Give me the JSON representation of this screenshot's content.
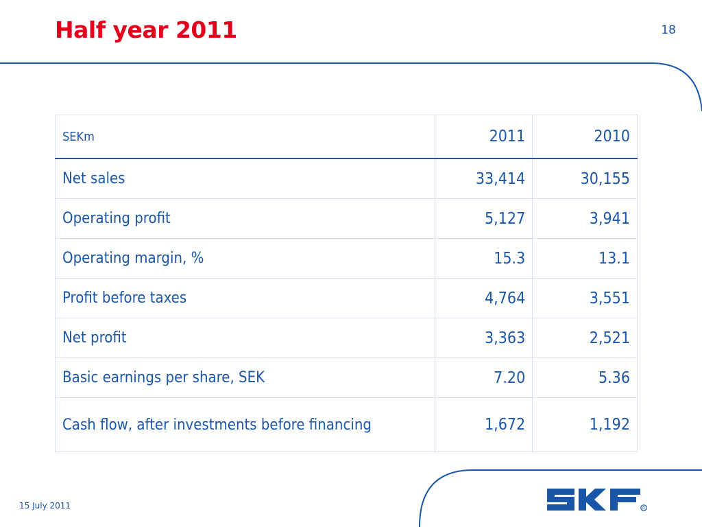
{
  "slide": {
    "title": "Half year 2011",
    "page_number": "18",
    "date": "15 July 2011",
    "logo_text": "SKF"
  },
  "table": {
    "headers": [
      "SEKm",
      "2011",
      "2010"
    ],
    "rows": [
      {
        "label": "Net sales",
        "y2011": "33,414",
        "y2010": "30,155"
      },
      {
        "label": "Operating profit",
        "y2011": "5,127",
        "y2010": "3,941"
      },
      {
        "label": "Operating margin, %",
        "y2011": "15.3",
        "y2010": "13.1"
      },
      {
        "label": "Profit before taxes",
        "y2011": "4,764",
        "y2010": "3,551"
      },
      {
        "label": "Net profit",
        "y2011": "3,363",
        "y2010": "2,521"
      },
      {
        "label": "Basic earnings per share, SEK",
        "y2011": "7.20",
        "y2010": "5.36"
      },
      {
        "label": "Cash flow, after investments before financing",
        "y2011": "1,672",
        "y2010": "1,192"
      }
    ]
  },
  "colors": {
    "title": "#e3001b",
    "text": "#1a56a8",
    "table_border": "#d3e1f2",
    "frame_line": "#1a56a8"
  }
}
